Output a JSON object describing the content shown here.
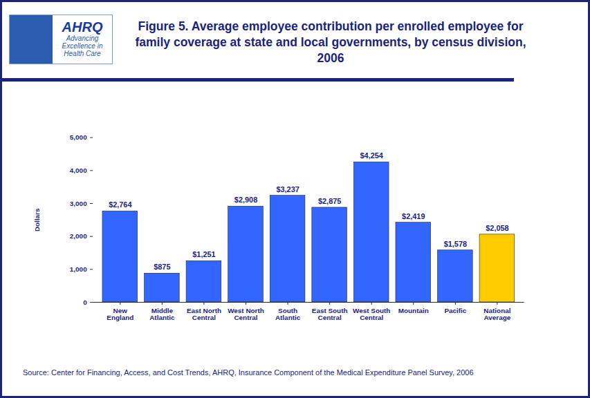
{
  "chart_data": {
    "type": "bar",
    "title": "Figure 5. Average employee contribution per enrolled employee for family coverage at state and local governments, by census division, 2006",
    "categories": [
      "New England",
      "Middle Atlantic",
      "East North Central",
      "West North Central",
      "South Atlantic",
      "East South Central",
      "West South Central",
      "Mountain",
      "Pacific",
      "National Average"
    ],
    "values": [
      2764,
      875,
      1251,
      2908,
      3237,
      2875,
      4254,
      2419,
      1578,
      2058
    ],
    "value_labels": [
      "$2,764",
      "$875",
      "$1,251",
      "$2,908",
      "$3,237",
      "$2,875",
      "$4,254",
      "$2,419",
      "$1,578",
      "$2,058"
    ],
    "colors": [
      "#3366ff",
      "#3366ff",
      "#3366ff",
      "#3366ff",
      "#3366ff",
      "#3366ff",
      "#3366ff",
      "#3366ff",
      "#3366ff",
      "#ffcc00"
    ],
    "y_label": "Dollars",
    "ylim": [
      0,
      5000
    ],
    "yticks": [
      0,
      {
        "value": 1000,
        "label": "1,000"
      },
      {
        "value": 2000,
        "label": "2,000"
      },
      {
        "value": 3000,
        "label": "3,000"
      },
      {
        "value": 4000,
        "label": "4,000"
      },
      {
        "value": 5000,
        "label": "5,000"
      }
    ],
    "grid": false,
    "data_labels": true,
    "source": "Source: Center for Financing, Access, and Cost Trends, AHRQ, Insurance Component of the Medical Expenditure Panel Survey, 2006"
  },
  "logo": {
    "name": "AHRQ",
    "tagline": "Advancing Excellence in Health Care"
  }
}
